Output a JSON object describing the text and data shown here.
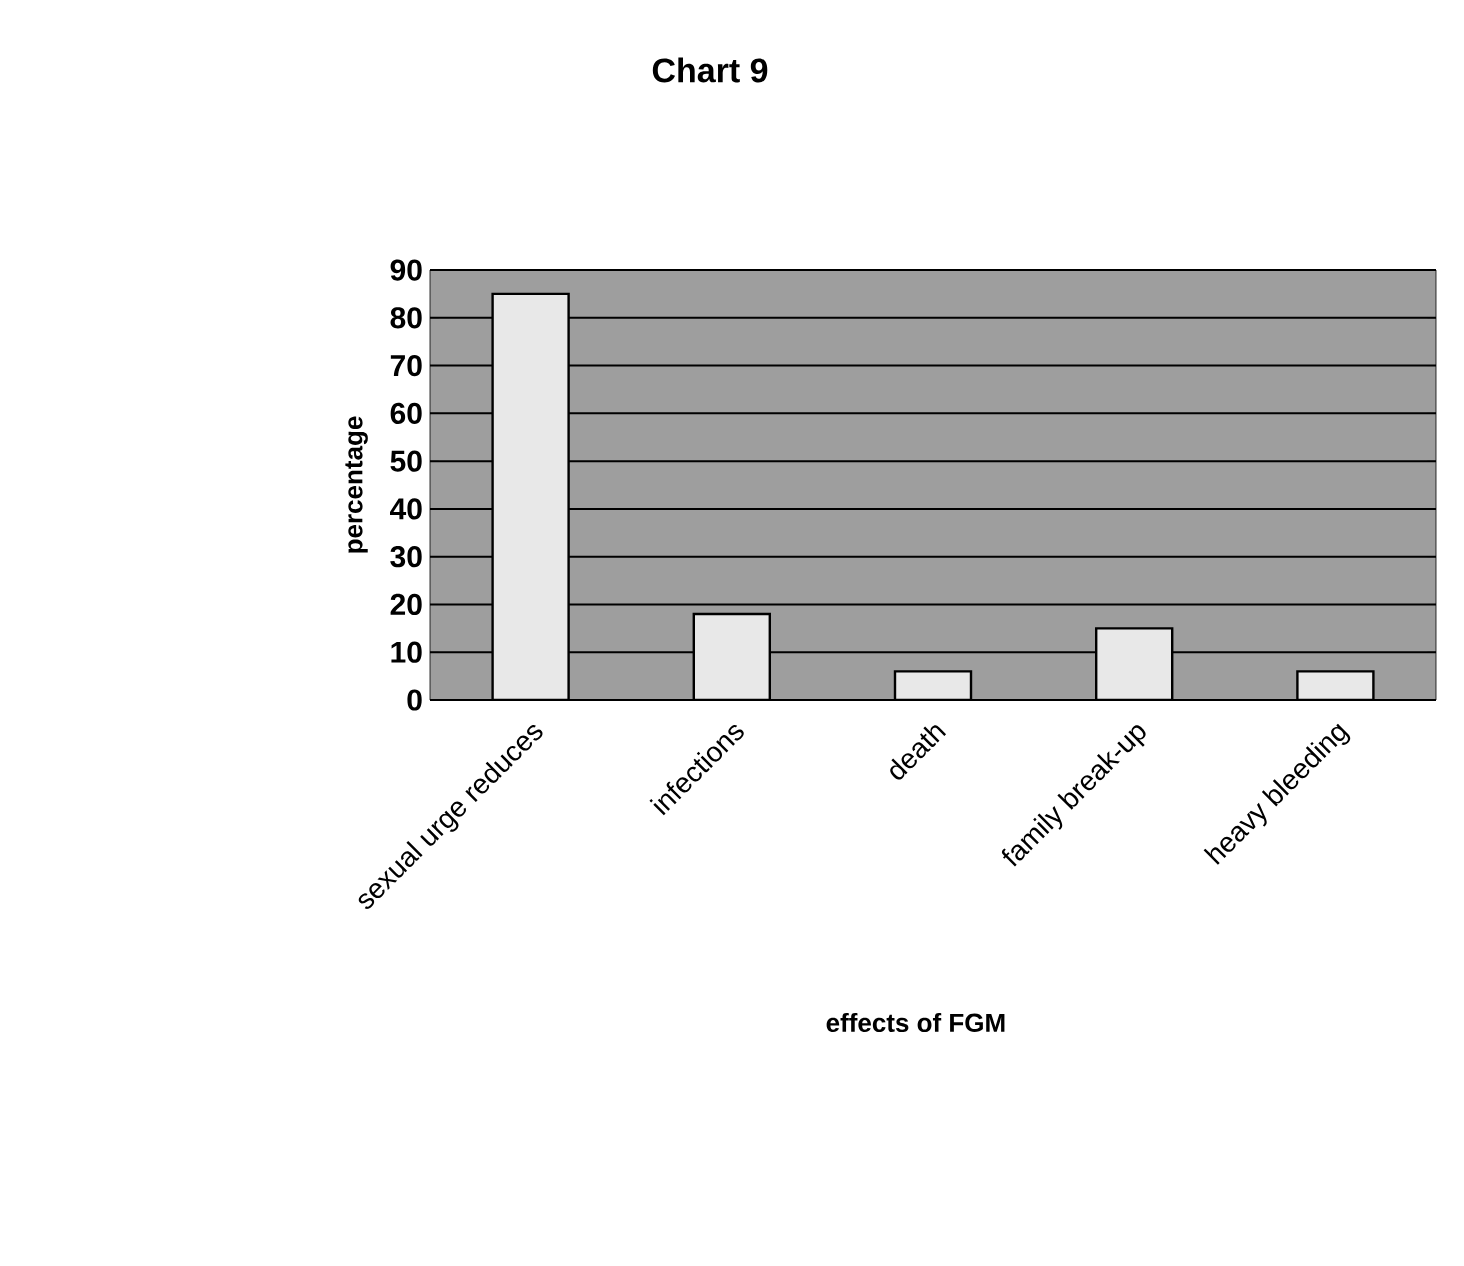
{
  "chart_data": {
    "type": "bar",
    "title": "Chart 9",
    "xlabel": "effects of FGM",
    "ylabel": "percentage",
    "categories": [
      "sexual urge reduces",
      "infections",
      "death",
      "family break-up",
      "heavy bleeding"
    ],
    "values": [
      85,
      18,
      6,
      15,
      6
    ],
    "color": "#e8e8e8",
    "ylim": [
      0,
      90
    ],
    "yticks": [
      0,
      10,
      20,
      30,
      40,
      50,
      60,
      70,
      80,
      90
    ],
    "grid": "y"
  }
}
